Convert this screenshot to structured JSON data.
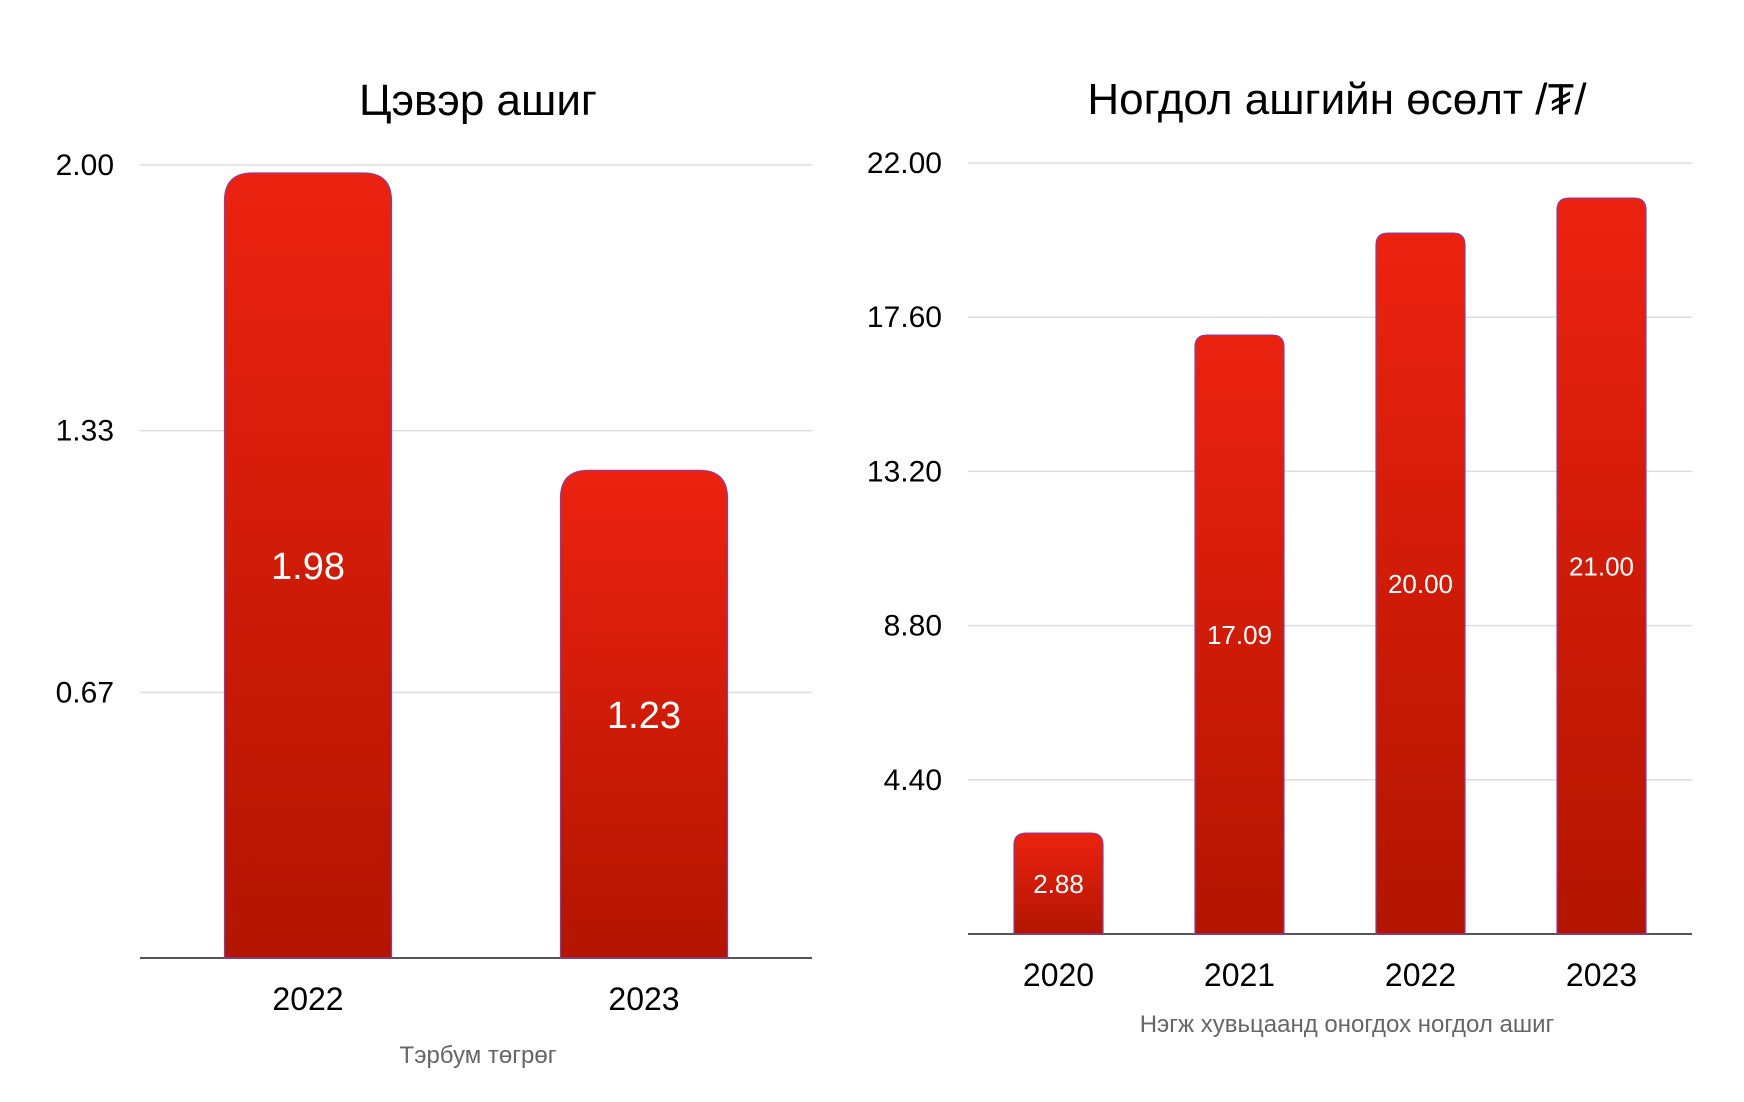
{
  "colors": {
    "bar_top": "#ec2210",
    "bar_bottom": "#b21500",
    "bar_stroke": "#8a3fa0",
    "grid": "#dddddd",
    "axis": "#555555"
  },
  "chart_data": [
    {
      "type": "bar",
      "title": "Цэвэр ашиг",
      "xlabel": "Тэрбум төгрөг",
      "ylabel": "",
      "categories": [
        "2022",
        "2023"
      ],
      "values": [
        1.98,
        1.23
      ],
      "value_labels": [
        "1.98",
        "1.23"
      ],
      "yticks": [
        "0.67",
        "1.33",
        "2.00"
      ],
      "ylim": [
        0,
        2.0
      ],
      "grid": true,
      "legend": "none"
    },
    {
      "type": "bar",
      "title": "Ногдол ашгийн өсөлт /₮/",
      "xlabel": "Нэгж хувьцаанд оногдох ногдол ашиг",
      "ylabel": "",
      "categories": [
        "2020",
        "2021",
        "2022",
        "2023"
      ],
      "values": [
        2.88,
        17.09,
        20.0,
        21.0
      ],
      "value_labels": [
        "2.88",
        "17.09",
        "20.00",
        "21.00"
      ],
      "yticks": [
        "4.40",
        "8.80",
        "13.20",
        "17.60",
        "22.00"
      ],
      "ylim": [
        0,
        22.0
      ],
      "grid": true,
      "legend": "none"
    }
  ]
}
